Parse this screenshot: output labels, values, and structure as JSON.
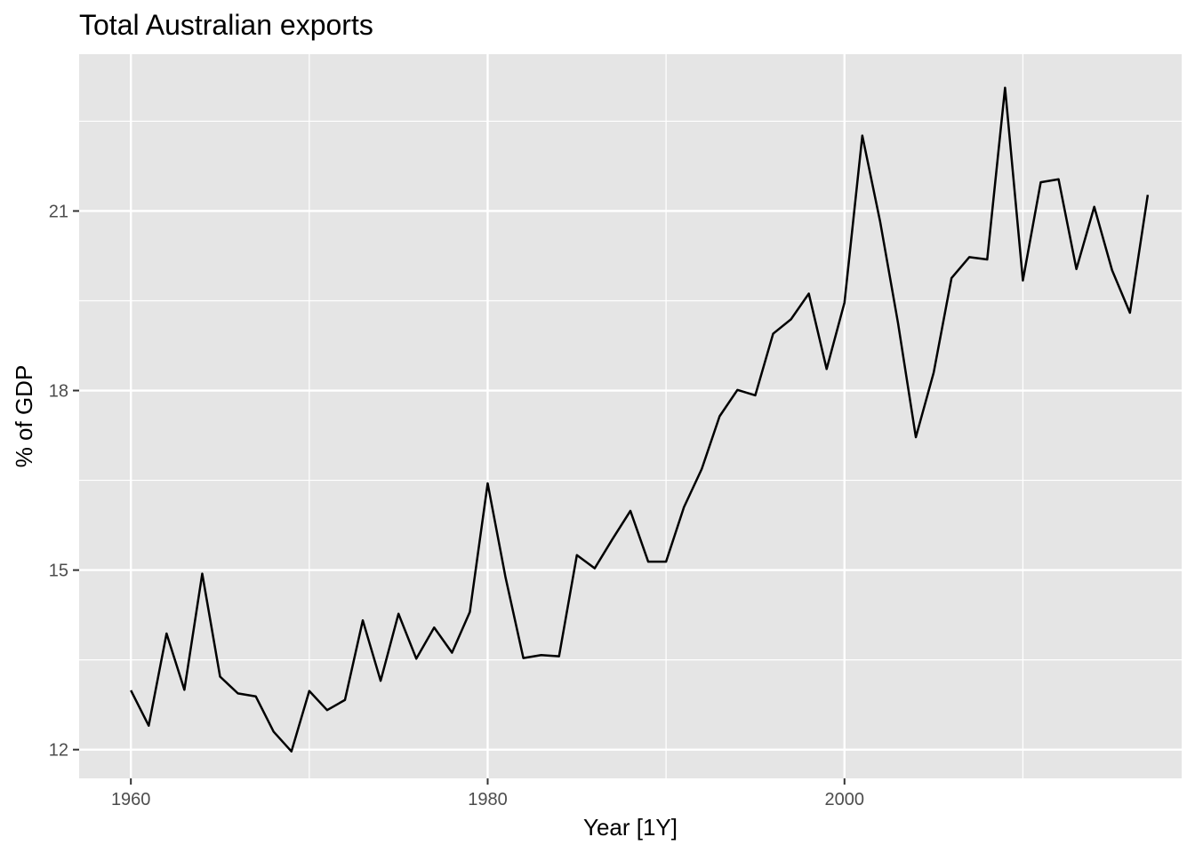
{
  "chart_data": {
    "type": "line",
    "title": "Total Australian exports",
    "xlabel": "Year [1Y]",
    "ylabel": "% of GDP",
    "xlim": [
      1957.1,
      2018.9
    ],
    "ylim": [
      11.52,
      23.62
    ],
    "x_ticks": [
      1960,
      1980,
      2000
    ],
    "x_minor_ticks": [
      1970,
      1990,
      2010
    ],
    "y_ticks": [
      12,
      15,
      18,
      21
    ],
    "y_minor_ticks": [
      13.5,
      16.5,
      19.5,
      22.5
    ],
    "grid": true,
    "legend": "none",
    "colors": {
      "panel": "#e5e5e5",
      "grid": "#ffffff",
      "line": "#000000",
      "tick": "#333333"
    },
    "series": [
      {
        "x": [
          1960,
          1961,
          1962,
          1963,
          1964,
          1965,
          1966,
          1967,
          1968,
          1969,
          1970,
          1971,
          1972,
          1973,
          1974,
          1975,
          1976,
          1977,
          1978,
          1979,
          1980,
          1981,
          1982,
          1983,
          1984,
          1985,
          1986,
          1987,
          1988,
          1989,
          1990,
          1991,
          1992,
          1993,
          1994,
          1995,
          1996,
          1997,
          1998,
          1999,
          2000,
          2001,
          2002,
          2003,
          2004,
          2005,
          2006,
          2007,
          2008,
          2009,
          2010,
          2011,
          2012,
          2013,
          2014,
          2015,
          2016,
          2017
        ],
        "values": [
          12.99,
          12.4,
          13.94,
          13.0,
          14.94,
          13.22,
          12.94,
          12.89,
          12.3,
          11.97,
          12.98,
          12.66,
          12.83,
          14.16,
          13.15,
          14.27,
          13.52,
          14.04,
          13.62,
          14.3,
          16.45,
          14.88,
          13.53,
          13.58,
          13.56,
          15.25,
          15.03,
          15.52,
          15.99,
          15.14,
          15.14,
          16.05,
          16.69,
          17.57,
          18.01,
          17.92,
          18.95,
          19.19,
          19.62,
          18.36,
          19.47,
          22.26,
          20.82,
          19.13,
          17.22,
          18.3,
          19.88,
          20.23,
          20.19,
          23.06,
          19.84,
          21.48,
          21.53,
          20.03,
          21.07,
          20.01,
          19.3,
          21.27
        ]
      }
    ]
  }
}
